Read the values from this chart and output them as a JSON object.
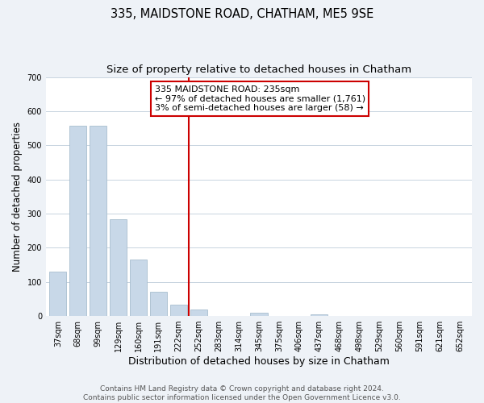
{
  "title": "335, MAIDSTONE ROAD, CHATHAM, ME5 9SE",
  "subtitle": "Size of property relative to detached houses in Chatham",
  "xlabel": "Distribution of detached houses by size in Chatham",
  "ylabel": "Number of detached properties",
  "bar_labels": [
    "37sqm",
    "68sqm",
    "99sqm",
    "129sqm",
    "160sqm",
    "191sqm",
    "222sqm",
    "252sqm",
    "283sqm",
    "314sqm",
    "345sqm",
    "375sqm",
    "406sqm",
    "437sqm",
    "468sqm",
    "498sqm",
    "529sqm",
    "560sqm",
    "591sqm",
    "621sqm",
    "652sqm"
  ],
  "bar_values": [
    130,
    557,
    557,
    283,
    165,
    70,
    33,
    19,
    0,
    0,
    10,
    0,
    0,
    4,
    0,
    0,
    0,
    0,
    0,
    0,
    0
  ],
  "bar_color": "#c8d8e8",
  "bar_edge_color": "#a8bece",
  "vline_x": 6.5,
  "vline_color": "#cc0000",
  "annotation_title": "335 MAIDSTONE ROAD: 235sqm",
  "annotation_line1": "← 97% of detached houses are smaller (1,761)",
  "annotation_line2": "3% of semi-detached houses are larger (58) →",
  "annotation_box_color": "#ffffff",
  "annotation_border_color": "#cc0000",
  "ylim": [
    0,
    700
  ],
  "yticks": [
    0,
    100,
    200,
    300,
    400,
    500,
    600,
    700
  ],
  "footer_line1": "Contains HM Land Registry data © Crown copyright and database right 2024.",
  "footer_line2": "Contains public sector information licensed under the Open Government Licence v3.0.",
  "bg_color": "#eef2f7",
  "plot_bg_color": "#ffffff",
  "title_fontsize": 10.5,
  "subtitle_fontsize": 9.5,
  "tick_fontsize": 7,
  "ylabel_fontsize": 8.5,
  "xlabel_fontsize": 9,
  "footer_fontsize": 6.5,
  "annotation_fontsize": 8
}
